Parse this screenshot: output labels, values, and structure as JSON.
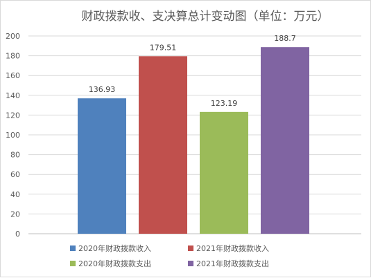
{
  "chart_data": {
    "type": "bar",
    "title": "财政拨款收、支决算总计变动图（单位：万元）",
    "categories": [
      "2020年财政拨款收入",
      "2021年财政拨款收入",
      "2020年财政拨款支出",
      "2021年财政拨款支出"
    ],
    "values": [
      136.93,
      179.51,
      123.19,
      188.7
    ],
    "data_labels": [
      "136.93",
      "179.51",
      "123.19",
      "188.7"
    ],
    "colors": [
      "#4f81bd",
      "#c0504d",
      "#9bbb59",
      "#8064a2"
    ],
    "ylim": [
      0,
      200
    ],
    "yticks": [
      "0",
      "20",
      "40",
      "60",
      "80",
      "100",
      "120",
      "140",
      "160",
      "180",
      "200"
    ],
    "grid": true,
    "legend_position": "bottom"
  }
}
